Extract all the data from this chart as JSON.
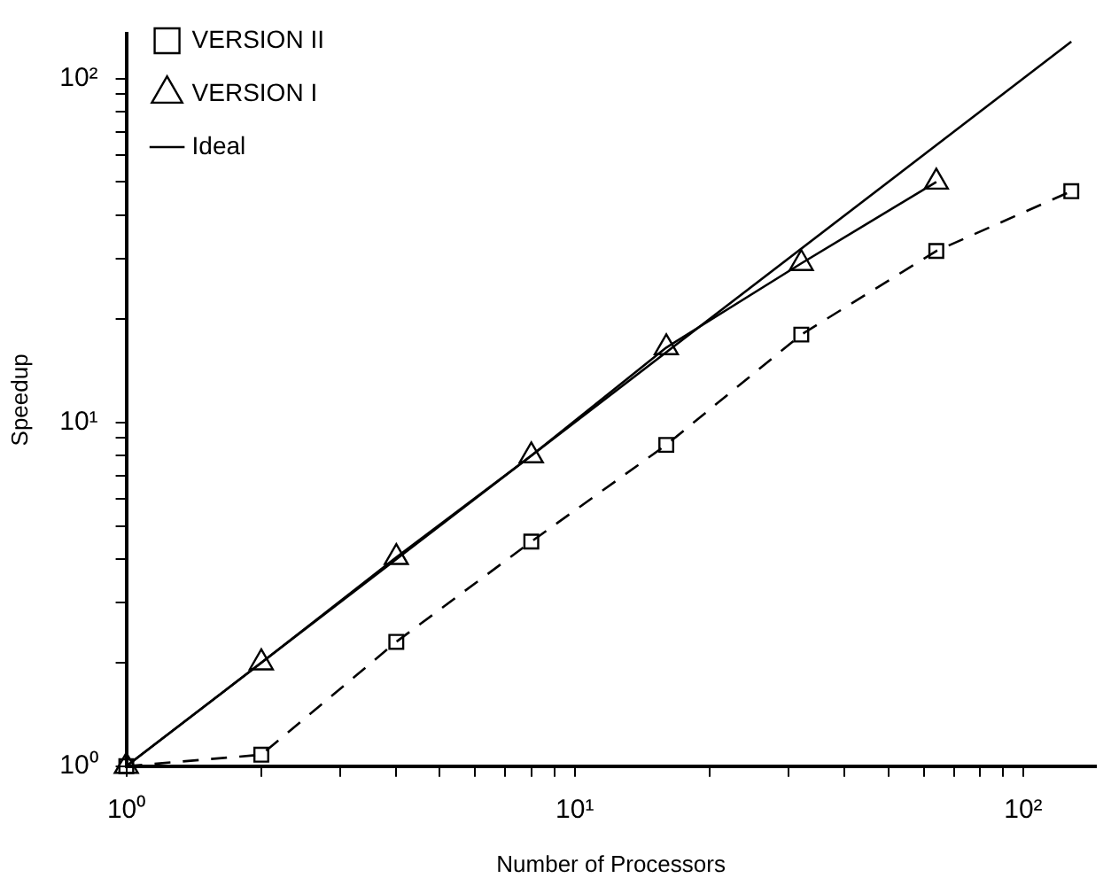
{
  "chart_data": {
    "type": "line",
    "xlabel": "Number of Processors",
    "ylabel": "Speedup",
    "log": "xy",
    "legend": "top left",
    "grid": false,
    "xlim": [
      1,
      145
    ],
    "ylim": [
      1,
      135
    ],
    "xticks": [
      {
        "value": 1,
        "label": "10⁰"
      },
      {
        "value": 2,
        "label": null
      },
      {
        "value": 3,
        "label": null
      },
      {
        "value": 4,
        "label": null
      },
      {
        "value": 5,
        "label": null
      },
      {
        "value": 6,
        "label": null
      },
      {
        "value": 7,
        "label": null
      },
      {
        "value": 8,
        "label": null
      },
      {
        "value": 9,
        "label": null
      },
      {
        "value": 10,
        "label": "10¹"
      },
      {
        "value": 20,
        "label": null
      },
      {
        "value": 30,
        "label": null
      },
      {
        "value": 40,
        "label": null
      },
      {
        "value": 50,
        "label": null
      },
      {
        "value": 60,
        "label": null
      },
      {
        "value": 70,
        "label": null
      },
      {
        "value": 80,
        "label": null
      },
      {
        "value": 90,
        "label": null
      },
      {
        "value": 100,
        "label": "10²"
      }
    ],
    "yticks": [
      {
        "value": 1,
        "label": "10⁰"
      },
      {
        "value": 2,
        "label": null
      },
      {
        "value": 3,
        "label": null
      },
      {
        "value": 4,
        "label": null
      },
      {
        "value": 5,
        "label": null
      },
      {
        "value": 6,
        "label": null
      },
      {
        "value": 7,
        "label": null
      },
      {
        "value": 8,
        "label": null
      },
      {
        "value": 9,
        "label": null
      },
      {
        "value": 10,
        "label": "10¹"
      },
      {
        "value": 20,
        "label": null
      },
      {
        "value": 30,
        "label": null
      },
      {
        "value": 40,
        "label": null
      },
      {
        "value": 50,
        "label": null
      },
      {
        "value": 60,
        "label": null
      },
      {
        "value": 70,
        "label": null
      },
      {
        "value": 80,
        "label": null
      },
      {
        "value": 90,
        "label": null
      },
      {
        "value": 100,
        "label": "10²"
      }
    ],
    "series": [
      {
        "name": "VERSION II",
        "color": "#000000",
        "marker": "square",
        "line_style": "dashed",
        "x": [
          1,
          2,
          4,
          8,
          16,
          32,
          64,
          128
        ],
        "values": [
          1,
          1.08,
          2.3,
          4.5,
          8.6,
          18,
          31.5,
          47
        ]
      },
      {
        "name": "VERSION I",
        "color": "#000000",
        "marker": "triangle",
        "line_style": "solid",
        "x": [
          1,
          2,
          4,
          8,
          16,
          32,
          64
        ],
        "values": [
          1,
          2,
          4.05,
          8,
          16.5,
          29,
          50
        ]
      },
      {
        "name": "Ideal",
        "color": "#000000",
        "marker": "none",
        "line_style": "solid",
        "x": [
          1,
          128
        ],
        "values": [
          1,
          128
        ]
      }
    ]
  }
}
